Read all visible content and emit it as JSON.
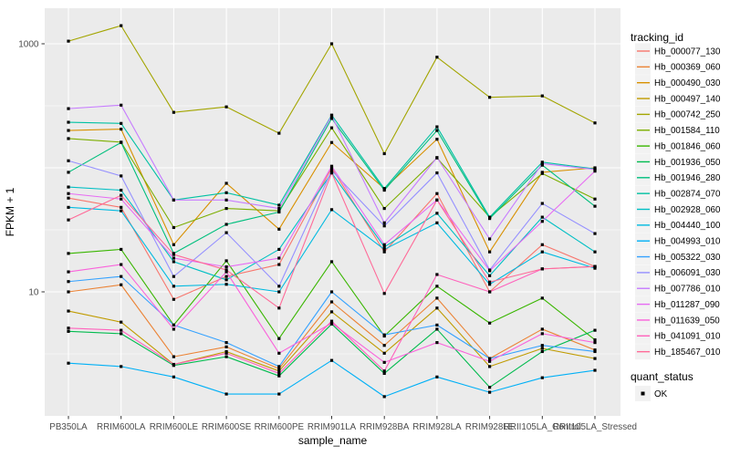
{
  "figure": {
    "background": "#FFFFFF",
    "panel_background": "#EBEBEB",
    "gridline_color": "#FFFFFF",
    "tick_mark_color": "#333333",
    "tick_text_color": "#4D4D4D",
    "title_text_color": "#000000",
    "legend_key_background": "#F2F2F2",
    "marker_color": "#000000"
  },
  "chart_data": {
    "type": "line",
    "title": "",
    "xlabel": "sample_name",
    "ylabel": "FPKM + 1",
    "y_scale": "log10",
    "ylim": [
      1,
      1900
    ],
    "y_axis_tick_labels": [
      "1000",
      "10"
    ],
    "y_axis_tick_values": [
      1000,
      10
    ],
    "grid": "white major/minor gridlines on gray panel (ggplot default)",
    "legend_position": "right",
    "legend_title": "tracking_id",
    "marker_legend": {
      "title": "quant_status",
      "label": "OK",
      "marker": "black-square"
    },
    "categories": [
      "PB350LA",
      "RRIM600LA",
      "RRIM600LE",
      "RRIM600SE",
      "RRIM600PE",
      "RRIM901LA",
      "RRIM928BA",
      "RRIM928LA",
      "RRIM928LE",
      "RRII105LA_Control",
      "RRII105LA_Stressed"
    ],
    "series": [
      {
        "name": "Hb_000077_130",
        "color": "#F8766D",
        "values": [
          57,
          48,
          8.7,
          13.3,
          16.6,
          100,
          21,
          62,
          10,
          24,
          16
        ]
      },
      {
        "name": "Hb_000369_060",
        "color": "#EB8335",
        "values": [
          10,
          11.4,
          3.0,
          3.6,
          2.4,
          8.3,
          3.7,
          8.9,
          2.9,
          5.0,
          3.4
        ]
      },
      {
        "name": "Hb_000490_030",
        "color": "#D89000",
        "values": [
          200,
          205,
          24,
          75,
          32,
          160,
          68,
          170,
          21,
          92,
          100
        ]
      },
      {
        "name": "Hb_000497_140",
        "color": "#C09B00",
        "values": [
          7.0,
          5.7,
          2.6,
          3.3,
          2.3,
          6.9,
          3.2,
          7.4,
          2.5,
          3.5,
          2.9
        ]
      },
      {
        "name": "Hb_000742_250",
        "color": "#A3A500",
        "values": [
          1050,
          1400,
          280,
          310,
          190,
          1000,
          130,
          780,
          370,
          380,
          230
        ]
      },
      {
        "name": "Hb_001584_110",
        "color": "#7CAE00",
        "values": [
          172,
          161,
          33,
          47,
          45,
          210,
          47,
          120,
          40,
          90,
          56
        ]
      },
      {
        "name": "Hb_001846_060",
        "color": "#39B600",
        "values": [
          20.4,
          22,
          5.4,
          17.8,
          4.2,
          17.5,
          4.4,
          11.1,
          5.6,
          8.9,
          4.1
        ]
      },
      {
        "name": "Hb_001936_050",
        "color": "#00BB4E",
        "values": [
          4.8,
          4.6,
          2.55,
          3.0,
          2.1,
          5.5,
          2.2,
          5.0,
          1.7,
          3.3,
          4.9
        ]
      },
      {
        "name": "Hb_001946_280",
        "color": "#00BF7D",
        "values": [
          92,
          160,
          20.4,
          35,
          44,
          250,
          66,
          200,
          39,
          105,
          49
        ]
      },
      {
        "name": "Hb_002874_070",
        "color": "#00C1A3",
        "values": [
          233,
          228,
          55,
          63,
          50,
          266,
          68,
          214,
          40,
          111,
          98
        ]
      },
      {
        "name": "Hb_002928_060",
        "color": "#00BFC4",
        "values": [
          70,
          66,
          17.5,
          12.5,
          22,
          91,
          23,
          43,
          13.5,
          40,
          21
        ]
      },
      {
        "name": "Hb_004440_100",
        "color": "#00BAE0",
        "values": [
          48,
          45,
          11.1,
          11.5,
          10,
          46,
          22,
          36,
          11.5,
          21,
          15.5
        ]
      },
      {
        "name": "Hb_004993_010",
        "color": "#00B0F6",
        "values": [
          2.66,
          2.5,
          2.06,
          1.5,
          1.5,
          2.8,
          1.43,
          2.06,
          1.55,
          2.03,
          2.33
        ]
      },
      {
        "name": "Hb_005322_030",
        "color": "#35A2FF",
        "values": [
          12.1,
          13.3,
          5.4,
          3.9,
          2.5,
          10,
          4.5,
          5.4,
          2.9,
          3.7,
          3.3
        ]
      },
      {
        "name": "Hb_006091_030",
        "color": "#9590FF",
        "values": [
          114,
          86,
          13.3,
          30,
          11.1,
          95,
          34,
          91,
          15,
          51.6,
          29.5
        ]
      },
      {
        "name": "Hb_007786_010",
        "color": "#C77CFF",
        "values": [
          300,
          320,
          55,
          55,
          47,
          262,
          36,
          121,
          26.7,
          108,
          97
        ]
      },
      {
        "name": "Hb_011287_090",
        "color": "#E76BF3",
        "values": [
          62,
          56,
          18.7,
          15.9,
          18.7,
          103,
          24,
          55,
          14.8,
          37,
          94
        ]
      },
      {
        "name": "Hb_011639_050",
        "color": "#FA62DB",
        "values": [
          14.5,
          16.6,
          5.0,
          14.5,
          3.2,
          5.6,
          2.7,
          3.9,
          2.75,
          4.6,
          3.9
        ]
      },
      {
        "name": "Hb_041091_010",
        "color": "#FF62BC",
        "values": [
          5.1,
          4.9,
          2.6,
          3.2,
          2.2,
          5.8,
          2.3,
          13.8,
          10,
          15.3,
          16
        ]
      },
      {
        "name": "Hb_185467_010",
        "color": "#FF6A98",
        "values": [
          38,
          60,
          20,
          15,
          7.4,
          91,
          9.7,
          55,
          12,
          15.3,
          16
        ]
      }
    ]
  }
}
